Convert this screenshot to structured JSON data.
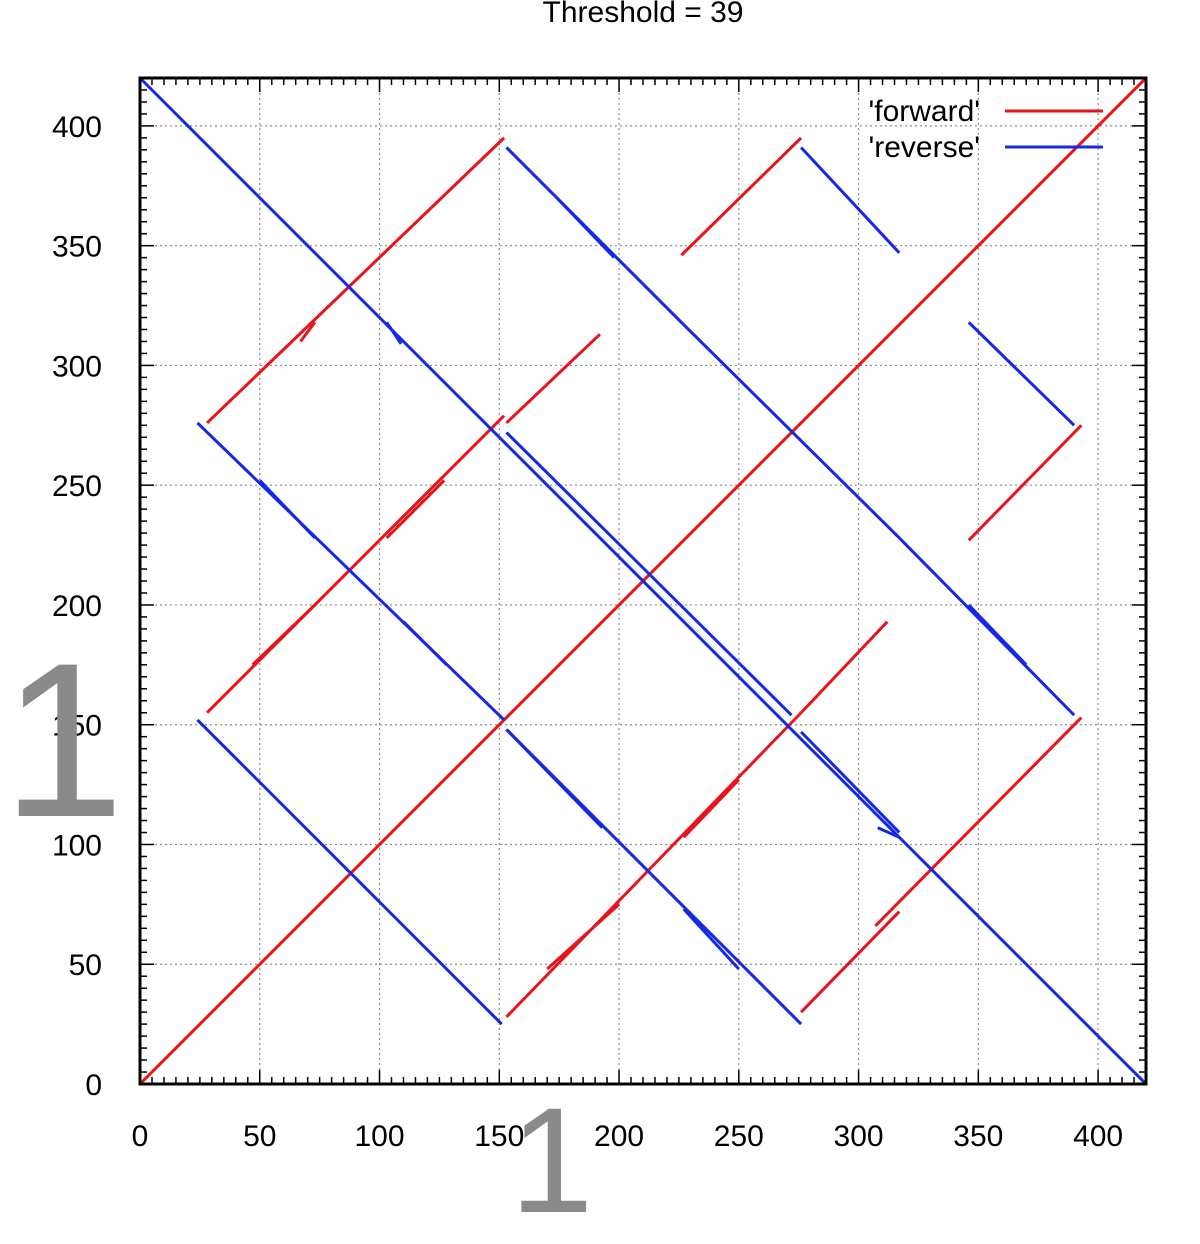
{
  "chart_data": {
    "type": "line",
    "title": "Threshold = 39",
    "xlim": [
      0,
      420
    ],
    "ylim": [
      0,
      420
    ],
    "xticks": [
      0,
      50,
      100,
      150,
      200,
      250,
      300,
      350,
      400
    ],
    "yticks": [
      0,
      50,
      100,
      150,
      200,
      250,
      300,
      350,
      400
    ],
    "grid": true,
    "legend_position": "top-right",
    "series": [
      {
        "name": "'forward'",
        "color": "#e8141c",
        "segments": [
          [
            [
              0,
              0
            ],
            [
              420,
              420
            ]
          ],
          [
            [
              28,
              155
            ],
            [
              152,
              279
            ]
          ],
          [
            [
              28,
              276
            ],
            [
              152,
              395
            ]
          ],
          [
            [
              67,
              310
            ],
            [
              73,
              318
            ]
          ],
          [
            [
              103,
              228
            ],
            [
              127,
              252
            ]
          ],
          [
            [
              47,
              175
            ],
            [
              73,
              200
            ]
          ],
          [
            [
              153,
              28
            ],
            [
              276,
              155
            ]
          ],
          [
            [
              170,
              48
            ],
            [
              200,
              75
            ]
          ],
          [
            [
              227,
              103
            ],
            [
              250,
              127
            ]
          ],
          [
            [
              153,
              276
            ],
            [
              192,
              313
            ]
          ],
          [
            [
              226,
              346
            ],
            [
              276,
              395
            ]
          ],
          [
            [
              276,
              30
            ],
            [
              317,
              72
            ]
          ],
          [
            [
              276,
              155
            ],
            [
              312,
              193
            ]
          ],
          [
            [
              307,
              66
            ],
            [
              393,
              153
            ]
          ],
          [
            [
              346,
              227
            ],
            [
              393,
              275
            ]
          ]
        ]
      },
      {
        "name": "'reverse'",
        "color": "#1428e6",
        "segments": [
          [
            [
              0,
              420
            ],
            [
              420,
              0
            ]
          ],
          [
            [
              24,
              276
            ],
            [
              152,
              152
            ]
          ],
          [
            [
              24,
              152
            ],
            [
              151,
              25
            ]
          ],
          [
            [
              103,
              318
            ],
            [
              109,
              309
            ]
          ],
          [
            [
              50,
              252
            ],
            [
              73,
              228
            ]
          ],
          [
            [
              110,
              193
            ],
            [
              128,
              175
            ]
          ],
          [
            [
              153,
              148
            ],
            [
              193,
              107
            ]
          ],
          [
            [
              153,
              272
            ],
            [
              272,
              154
            ]
          ],
          [
            [
              153,
              391
            ],
            [
              227,
              317
            ]
          ],
          [
            [
              174,
              370
            ],
            [
              198,
              345
            ]
          ],
          [
            [
              227,
              317
            ],
            [
              317,
              228
            ]
          ],
          [
            [
              227,
              73
            ],
            [
              250,
              48
            ]
          ],
          [
            [
              153,
              148
            ],
            [
              276,
              25
            ]
          ],
          [
            [
              276,
              391
            ],
            [
              317,
              347
            ]
          ],
          [
            [
              276,
              147
            ],
            [
              317,
              105
            ]
          ],
          [
            [
              308,
              107
            ],
            [
              317,
              103
            ]
          ],
          [
            [
              317,
              228
            ],
            [
              390,
              154
            ]
          ],
          [
            [
              346,
              200
            ],
            [
              370,
              175
            ]
          ],
          [
            [
              346,
              318
            ],
            [
              390,
              275
            ]
          ]
        ]
      }
    ],
    "overlay_marks": [
      "1",
      "1"
    ]
  }
}
